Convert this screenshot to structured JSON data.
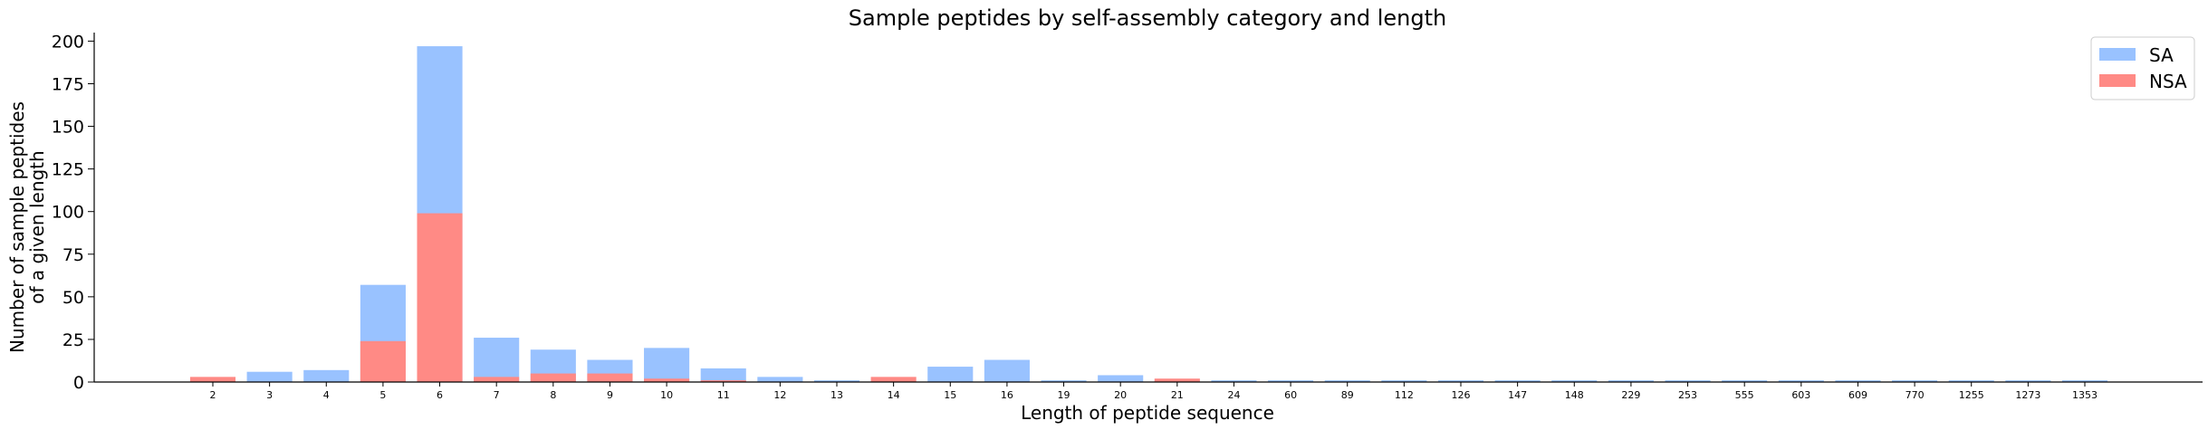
{
  "chart_data": {
    "type": "bar",
    "stacking": "overlay",
    "title": "Sample peptides by self-assembly category and length",
    "xlabel": "Length of peptide sequence",
    "ylabel_lines": [
      "Number of sample peptides",
      "of a given length"
    ],
    "ylim": [
      0,
      205
    ],
    "yticks": [
      0,
      25,
      50,
      75,
      100,
      125,
      150,
      175,
      200
    ],
    "grid": false,
    "legend_position": "top-right",
    "categories": [
      "2",
      "3",
      "4",
      "5",
      "6",
      "7",
      "8",
      "9",
      "10",
      "11",
      "12",
      "13",
      "14",
      "15",
      "16",
      "19",
      "20",
      "21",
      "24",
      "60",
      "89",
      "112",
      "126",
      "147",
      "148",
      "229",
      "253",
      "555",
      "603",
      "609",
      "770",
      "1255",
      "1273",
      "1353"
    ],
    "series": [
      {
        "name": "SA",
        "color": "#99c2ff",
        "values": [
          0,
          6,
          7,
          57,
          197,
          26,
          19,
          13,
          20,
          8,
          3,
          1,
          0,
          9,
          13,
          1,
          4,
          1,
          1,
          1,
          1,
          1,
          1,
          1,
          1,
          1,
          1,
          1,
          1,
          1,
          1,
          1,
          1,
          1
        ]
      },
      {
        "name": "NSA",
        "color": "#ff8a85",
        "values": [
          3,
          0,
          0,
          24,
          99,
          3,
          5,
          5,
          2,
          1,
          0,
          0,
          3,
          0,
          0,
          0,
          0,
          2,
          0,
          0,
          0,
          0,
          0,
          0,
          0,
          0,
          0,
          0,
          0,
          0,
          0,
          0,
          0,
          0
        ]
      }
    ]
  }
}
